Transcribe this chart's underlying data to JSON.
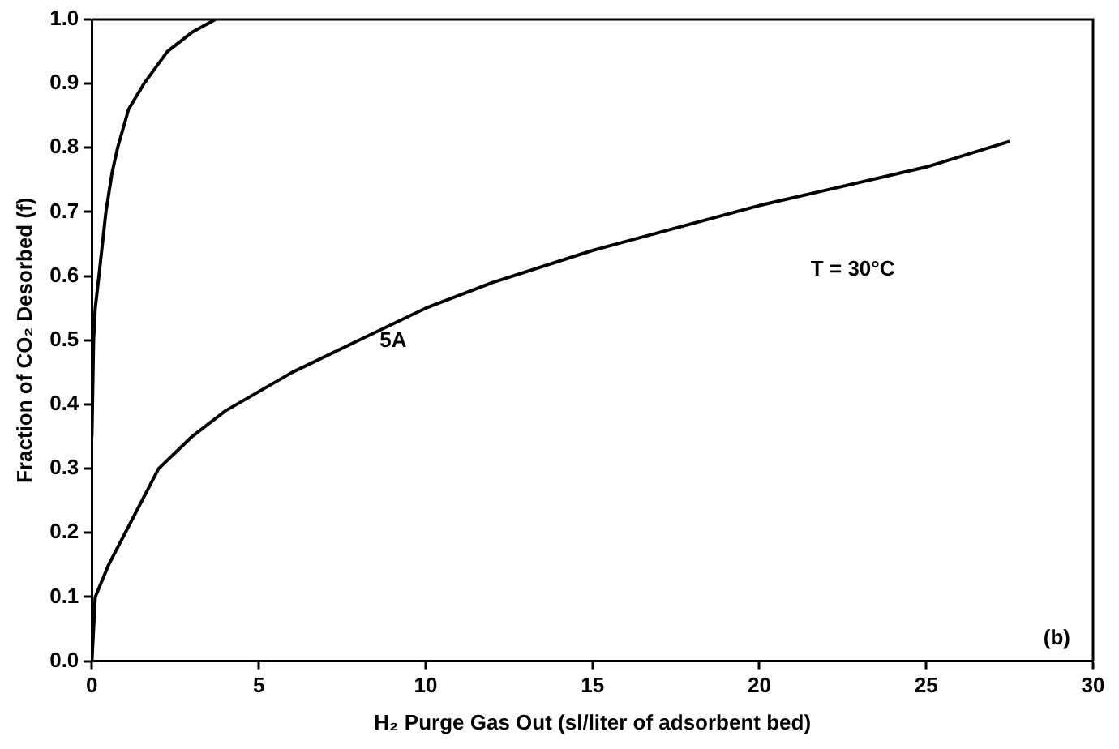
{
  "chart_data": {
    "type": "line",
    "xlabel": "H₂ Purge Gas Out (sl/liter of adsorbent bed)",
    "ylabel": "Fraction of CO₂ Desorbed (f)",
    "xlim": [
      0,
      30
    ],
    "ylim": [
      0,
      1
    ],
    "xticks": [
      0,
      5,
      10,
      15,
      20,
      25,
      30
    ],
    "yticks": [
      {
        "value": 0,
        "label": "0.0"
      },
      0.1,
      0.2,
      0.3,
      0.4,
      0.5,
      0.6,
      0.7,
      0.8,
      0.9,
      {
        "value": 1,
        "label": "1.0"
      }
    ],
    "grid": false,
    "legend": false,
    "marker": "none",
    "line_style": "solid",
    "annotations": [
      "T = 30°C",
      "(b)"
    ],
    "series": [
      {
        "color": "#000000",
        "x": [
          0,
          0.05,
          0.1,
          0.21,
          0.42,
          0.6,
          0.77,
          1.1,
          1.56,
          2.26,
          3.0,
          3.7
        ],
        "values": [
          0.35,
          0.5,
          0.55,
          0.6,
          0.7,
          0.76,
          0.8,
          0.86,
          0.9,
          0.95,
          0.98,
          1.0
        ]
      },
      {
        "name": "5A",
        "color": "#000000",
        "x": [
          0,
          0.1,
          0.5,
          1,
          2,
          3,
          4,
          6,
          8,
          10,
          12,
          15,
          20,
          25,
          27.5
        ],
        "values": [
          0,
          0.1,
          0.15,
          0.2,
          0.3,
          0.35,
          0.39,
          0.45,
          0.5,
          0.55,
          0.59,
          0.64,
          0.71,
          0.77,
          0.81
        ]
      }
    ]
  }
}
